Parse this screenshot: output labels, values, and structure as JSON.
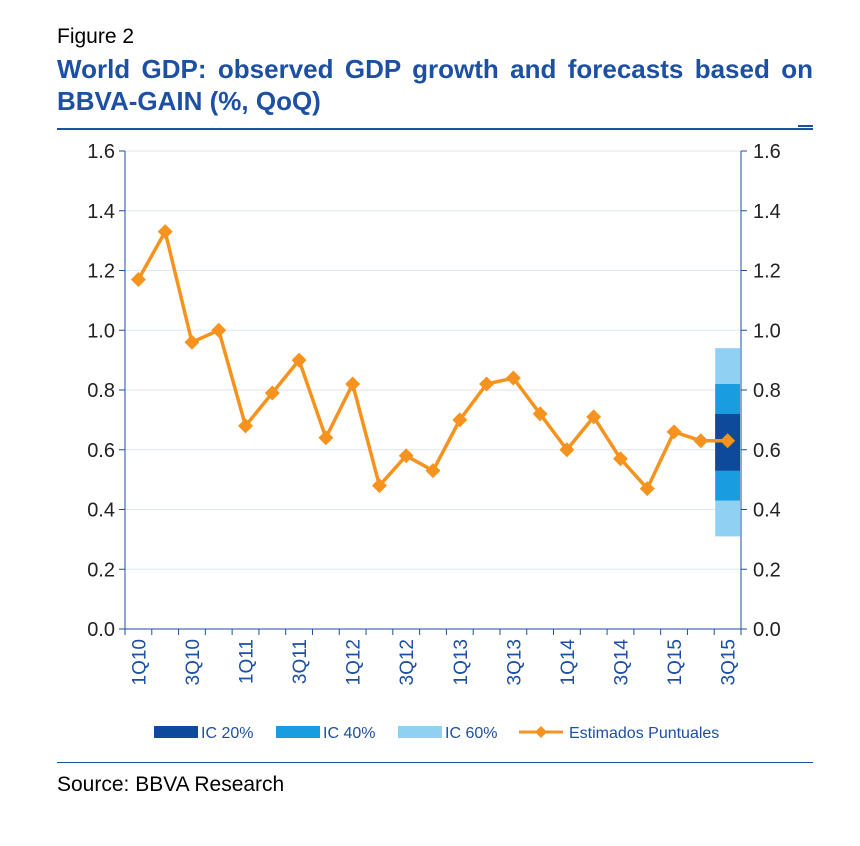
{
  "figure": {
    "label": "Figure 2",
    "title": "World GDP: observed GDP growth and forecasts based on BBVA-GAIN (%, QoQ)",
    "source": "Source: BBVA Research"
  },
  "colors": {
    "title": "#1d4fa3",
    "axis": "#1d4fa3",
    "line": "#f6931f",
    "ic20": "#0d4a9c",
    "ic40": "#1a9de0",
    "ic60": "#8fd0f3",
    "grid": "#dce6f2"
  },
  "chart_data": {
    "type": "line",
    "title": "World GDP: observed GDP growth and forecasts based on BBVA-GAIN (%, QoQ)",
    "xlabel": "",
    "ylabel": "",
    "ylim": [
      0,
      1.6
    ],
    "yticks": [
      "0.0",
      "0.2",
      "0.4",
      "0.6",
      "0.8",
      "1.0",
      "1.2",
      "1.4",
      "1.6"
    ],
    "grid": true,
    "categories": [
      "1Q10",
      "2Q10",
      "3Q10",
      "4Q10",
      "1Q11",
      "2Q11",
      "3Q11",
      "4Q11",
      "1Q12",
      "2Q12",
      "3Q12",
      "4Q12",
      "1Q13",
      "2Q13",
      "3Q13",
      "4Q13",
      "1Q14",
      "2Q14",
      "3Q14",
      "4Q14",
      "1Q15",
      "2Q15",
      "3Q15"
    ],
    "tick_labels": [
      "1Q10",
      "",
      "3Q10",
      "",
      "1Q11",
      "",
      "3Q11",
      "",
      "1Q12",
      "",
      "3Q12",
      "",
      "1Q13",
      "",
      "3Q13",
      "",
      "1Q14",
      "",
      "3Q14",
      "",
      "1Q15",
      "",
      "3Q15"
    ],
    "series": [
      {
        "name": "Estimados Puntuales",
        "values": [
          1.17,
          1.33,
          0.96,
          1.0,
          0.68,
          0.79,
          0.9,
          0.64,
          0.82,
          0.48,
          0.58,
          0.53,
          0.7,
          0.82,
          0.84,
          0.72,
          0.6,
          0.71,
          0.57,
          0.47,
          0.66,
          0.63,
          0.63
        ]
      }
    ],
    "confidence_intervals": [
      {
        "name": "IC 60%",
        "category": "3Q15",
        "low": 0.31,
        "high": 0.94
      },
      {
        "name": "IC 40%",
        "category": "3Q15",
        "low": 0.43,
        "high": 0.82
      },
      {
        "name": "IC 20%",
        "category": "3Q15",
        "low": 0.53,
        "high": 0.72
      }
    ],
    "legend": [
      "IC 20%",
      "IC 40%",
      "IC 60%",
      "Estimados Puntuales"
    ],
    "legend_position": "bottom"
  }
}
